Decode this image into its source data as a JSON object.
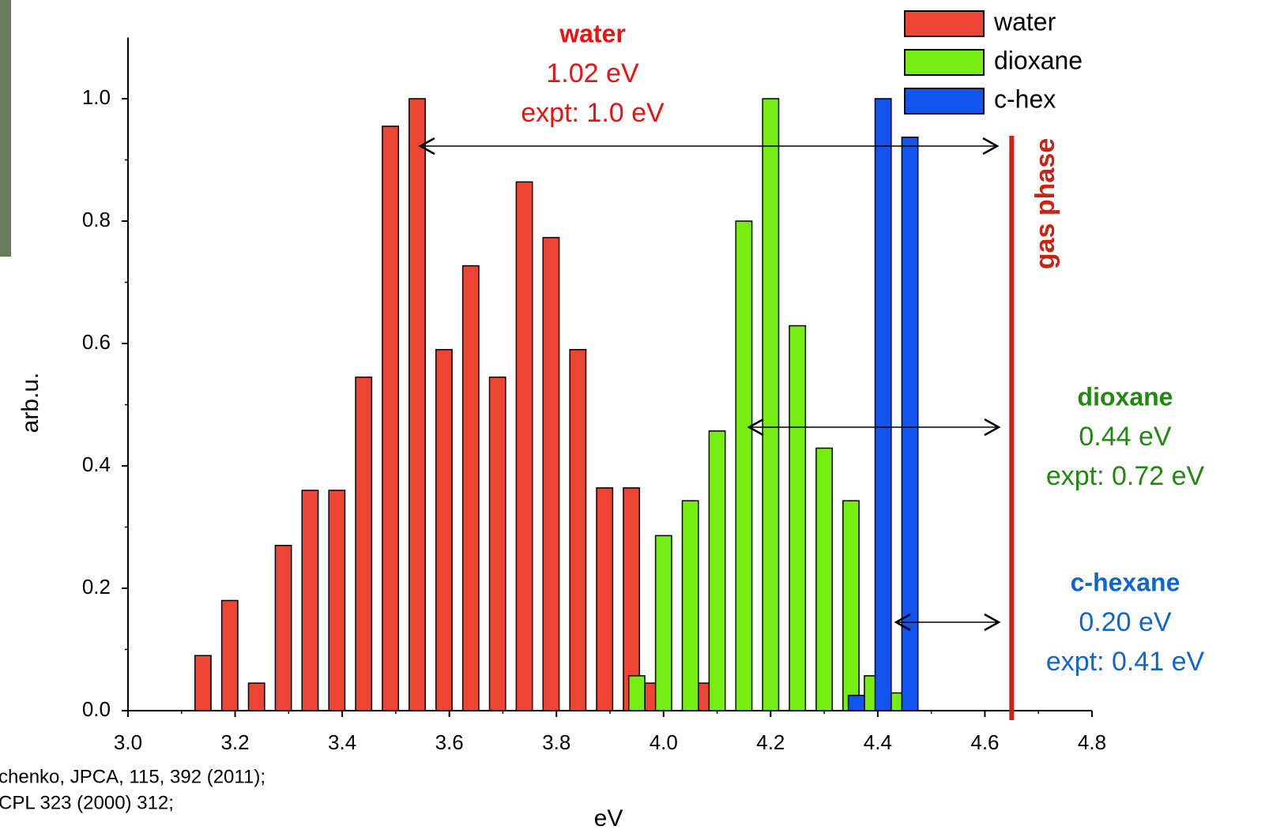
{
  "chart_data": {
    "type": "bar",
    "xlabel": "eV",
    "ylabel": "arb.u.",
    "xlim": [
      3.0,
      4.8
    ],
    "xticks": [
      {
        "value": 3.0,
        "label": "3.0"
      },
      3.2,
      3.4,
      3.6,
      3.8,
      {
        "value": 4.0,
        "label": "4.0"
      },
      4.2,
      4.4,
      4.6,
      4.8
    ],
    "ylim": [
      0,
      1.1
    ],
    "yticks": [
      {
        "value": 0,
        "label": "0.0"
      },
      0.2,
      0.4,
      0.6,
      0.8,
      {
        "value": 1,
        "label": "1.0"
      }
    ],
    "bar_width": 0.03,
    "series": [
      {
        "name": "water",
        "color": "#ee4433",
        "x": [
          3.14,
          3.19,
          3.24,
          3.29,
          3.34,
          3.39,
          3.44,
          3.49,
          3.54,
          3.59,
          3.64,
          3.69,
          3.74,
          3.79,
          3.84,
          3.89,
          3.94,
          3.98,
          4.08
        ],
        "values": [
          0.09,
          0.18,
          0.045,
          0.27,
          0.36,
          0.36,
          0.545,
          0.955,
          1.0,
          0.59,
          0.727,
          0.545,
          0.864,
          0.773,
          0.59,
          0.364,
          0.364,
          0.045,
          0.045
        ]
      },
      {
        "name": "dioxane",
        "color": "#77ee11",
        "x": [
          3.95,
          4.0,
          4.05,
          4.1,
          4.15,
          4.2,
          4.25,
          4.3,
          4.35,
          4.39,
          4.44
        ],
        "values": [
          0.057,
          0.286,
          0.343,
          0.457,
          0.8,
          1.0,
          0.629,
          0.429,
          0.343,
          0.057,
          0.029
        ]
      },
      {
        "name": "c-hex",
        "color": "#1155ee",
        "x": [
          4.36,
          4.41,
          4.46
        ],
        "values": [
          0.025,
          1.0,
          0.937
        ]
      }
    ],
    "reference_line": {
      "label": "gas phase",
      "x": 4.65,
      "color": "#cc2211"
    },
    "annotations": [
      {
        "lines": [
          "water",
          "1.02 eV",
          "expt: 1.0 eV"
        ],
        "color": "#ee1111"
      },
      {
        "lines": [
          "dioxane",
          "0.44 eV",
          "expt: 0.72 eV"
        ],
        "color": "#228811"
      },
      {
        "lines": [
          "c-hexane",
          "0.20 eV",
          "expt: 0.41 eV"
        ],
        "color": "#1166cc"
      }
    ],
    "citation": [
      "chenko, JPCA, 115, 392 (2011);",
      "CPL 323 (2000) 312;"
    ]
  }
}
